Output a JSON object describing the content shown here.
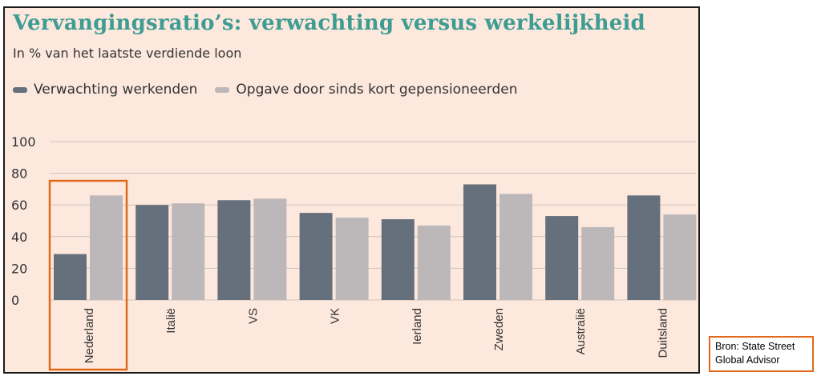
{
  "chart_data": {
    "type": "bar",
    "title": "Vervangingsratio’s: verwachting versus werkelijkheid",
    "subtitle": "In % van het laatste verdiende loon",
    "categories": [
      "Nederland",
      "Italië",
      "VS",
      "VK",
      "Ierland",
      "Zweden",
      "Australië",
      "Duitsland"
    ],
    "series": [
      {
        "name": "Verwachting werkenden",
        "color": "#66707d",
        "values": [
          29,
          60,
          63,
          55,
          51,
          73,
          53,
          66
        ]
      },
      {
        "name": "Opgave door sinds kort gepensioneerden",
        "color": "#bcb8ba",
        "values": [
          66,
          61,
          64,
          52,
          47,
          67,
          46,
          54
        ]
      }
    ],
    "ylim": [
      0,
      100
    ],
    "yticks": [
      0,
      20,
      40,
      60,
      80,
      100
    ],
    "grid": true,
    "legend_position": "top-left",
    "highlight_category": "Nederland",
    "highlight_color": "#e06a1b"
  },
  "source": {
    "line1": "Bron: State Street",
    "line2": "Global Advisor",
    "border_color": "#e06a1b"
  }
}
